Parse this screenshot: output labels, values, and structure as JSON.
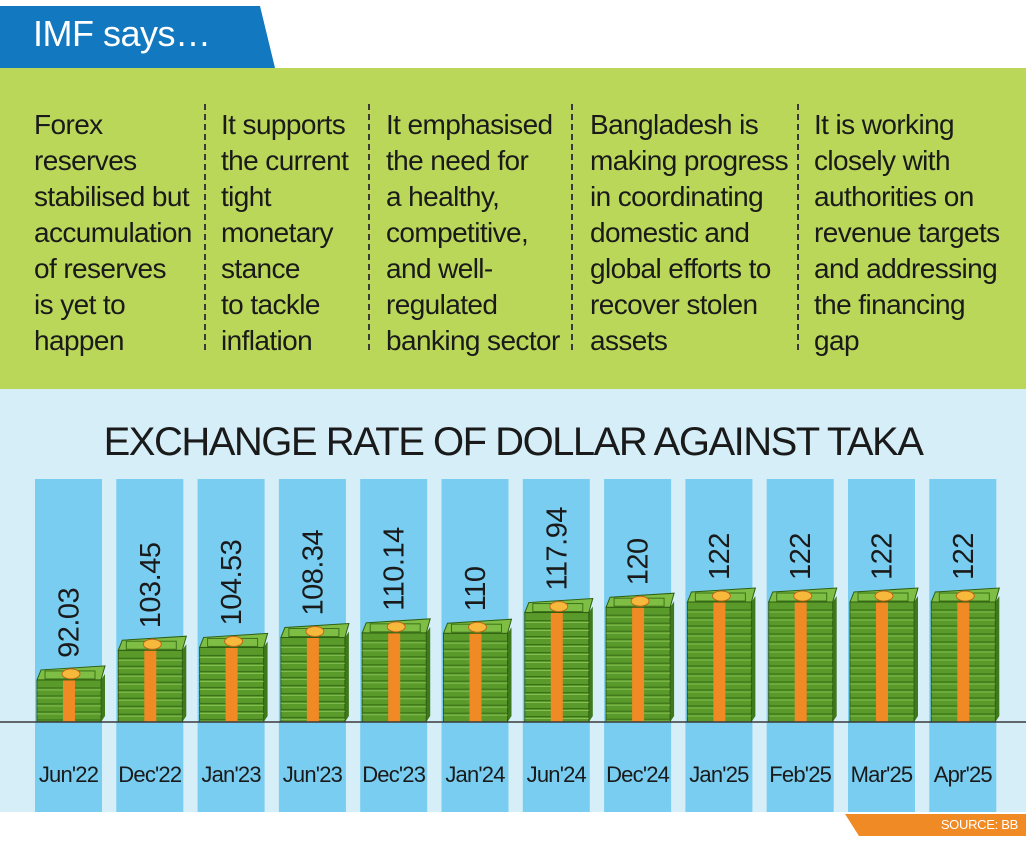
{
  "header": {
    "title": "IMF says…"
  },
  "points": [
    [
      "Forex",
      "reserves",
      "stabilised but",
      "accumulation",
      "of reserves",
      "is yet to",
      "happen"
    ],
    [
      "It supports",
      "the current",
      "tight",
      "monetary",
      "stance",
      "to tackle",
      "inflation"
    ],
    [
      "It emphasised",
      "the need for",
      "a healthy,",
      "competitive,",
      "and well-",
      "regulated",
      "banking sector"
    ],
    [
      "Bangladesh is",
      "making progress",
      "in coordinating",
      "domestic and",
      "global efforts to",
      "recover stolen",
      "assets"
    ],
    [
      "It is working",
      "closely with",
      "authorities on",
      "revenue targets",
      "and addressing",
      "the financing",
      "gap"
    ]
  ],
  "colors": {
    "tab": "#1278c0",
    "panel": "#bad75a",
    "chart_background": "#d5eef8",
    "column": "#79cdf0",
    "bill_green": "#5a9a2a",
    "bill_band": "#f08a24",
    "source_tag": "#f08a24"
  },
  "chart_data": {
    "type": "bar",
    "title": "EXCHANGE RATE OF DOLLAR AGAINST TAKA",
    "categories": [
      "Jun'22",
      "Dec'22",
      "Jan'23",
      "Jun'23",
      "Dec'23",
      "Jan'24",
      "Jun'24",
      "Dec'24",
      "Jan'25",
      "Feb'25",
      "Mar'25",
      "Apr'25"
    ],
    "values": [
      92.03,
      103.45,
      104.53,
      108.34,
      110.14,
      110,
      117.94,
      120,
      122,
      122,
      122,
      122
    ],
    "value_labels": [
      "92.03",
      "103.45",
      "104.53",
      "108.34",
      "110.14",
      "110",
      "117.94",
      "120",
      "122",
      "122",
      "122",
      "122"
    ],
    "xlabel": "",
    "ylabel": "",
    "marker": "stacks of taka banknotes",
    "grid": false
  },
  "source": "SOURCE: BB"
}
